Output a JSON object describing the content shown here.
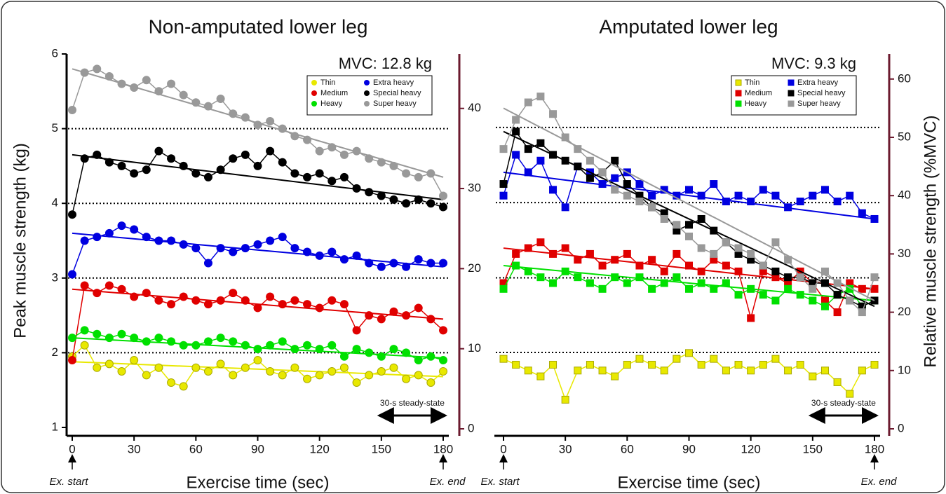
{
  "chart_data": [
    {
      "type": "scatter-line",
      "title": "Non-amputated lower leg",
      "xlabel": "Exercise time (sec)",
      "ylabel": "Peak muscle strength (kg)",
      "annotation": "MVC: 12.8 kg",
      "marker": "circle",
      "start_label": "Ex. start",
      "end_label": "Ex. end",
      "steady_state": {
        "label": "30-s steady-state",
        "range": [
          150,
          180
        ]
      },
      "x": [
        0,
        6,
        12,
        18,
        24,
        30,
        36,
        42,
        48,
        54,
        60,
        66,
        72,
        78,
        84,
        90,
        96,
        102,
        108,
        114,
        120,
        126,
        132,
        138,
        144,
        150,
        156,
        162,
        168,
        174,
        180
      ],
      "xlim": [
        0,
        180
      ],
      "xticks": [
        0,
        30,
        60,
        90,
        120,
        150,
        180
      ],
      "ylim": [
        1,
        6
      ],
      "yticks": [
        1,
        2,
        3,
        4,
        5,
        6
      ],
      "hlines": [
        2,
        3,
        4,
        5
      ],
      "y2lim": [
        0,
        46.8
      ],
      "y2ticks": [
        0,
        10,
        20,
        30,
        40
      ],
      "y2color": "#6b1a2e",
      "series": [
        {
          "name": "Thin",
          "color": "#e8e800",
          "values": [
            1.95,
            2.1,
            1.8,
            1.85,
            1.75,
            1.9,
            1.7,
            1.8,
            1.6,
            1.55,
            1.8,
            1.75,
            1.85,
            1.7,
            1.8,
            1.9,
            1.75,
            1.7,
            1.8,
            1.65,
            1.7,
            1.75,
            1.8,
            1.6,
            1.7,
            1.75,
            1.8,
            1.65,
            1.7,
            1.6,
            1.75
          ],
          "trend": [
            1.88,
            1.68
          ]
        },
        {
          "name": "Medium",
          "color": "#e00000",
          "values": [
            1.9,
            2.9,
            2.8,
            2.9,
            2.85,
            2.75,
            2.8,
            2.7,
            2.65,
            2.75,
            2.7,
            2.65,
            2.7,
            2.8,
            2.7,
            2.6,
            2.75,
            2.65,
            2.7,
            2.65,
            2.6,
            2.7,
            2.65,
            2.3,
            2.5,
            2.45,
            2.55,
            2.5,
            2.6,
            2.45,
            2.3
          ],
          "trend": [
            2.85,
            2.45
          ]
        },
        {
          "name": "Heavy",
          "color": "#00e000",
          "values": [
            2.2,
            2.3,
            2.25,
            2.2,
            2.25,
            2.2,
            2.15,
            2.2,
            2.15,
            2.1,
            2.1,
            2.15,
            2.2,
            2.15,
            2.1,
            2.05,
            2.1,
            2.15,
            2.05,
            2.1,
            2.05,
            2.1,
            1.95,
            2.05,
            2.0,
            1.95,
            2.05,
            2.0,
            1.9,
            1.95,
            1.9
          ],
          "trend": [
            2.2,
            1.93
          ]
        },
        {
          "name": "Extra heavy",
          "color": "#0000e0",
          "values": [
            3.05,
            3.5,
            3.55,
            3.6,
            3.7,
            3.65,
            3.55,
            3.5,
            3.5,
            3.45,
            3.4,
            3.2,
            3.4,
            3.35,
            3.4,
            3.45,
            3.5,
            3.55,
            3.4,
            3.35,
            3.3,
            3.35,
            3.25,
            3.3,
            3.2,
            3.15,
            3.2,
            3.15,
            3.25,
            3.2,
            3.2
          ],
          "trend": [
            3.6,
            3.15
          ]
        },
        {
          "name": "Special heavy",
          "color": "#000000",
          "values": [
            3.85,
            4.6,
            4.65,
            4.55,
            4.5,
            4.4,
            4.45,
            4.7,
            4.6,
            4.5,
            4.4,
            4.35,
            4.45,
            4.6,
            4.65,
            4.5,
            4.7,
            4.55,
            4.4,
            4.35,
            4.4,
            4.3,
            4.35,
            4.2,
            4.15,
            4.1,
            4.05,
            4.0,
            4.05,
            4.0,
            3.95
          ],
          "trend": [
            4.65,
            4.05
          ]
        },
        {
          "name": "Super heavy",
          "color": "#999999",
          "values": [
            5.25,
            5.75,
            5.8,
            5.7,
            5.6,
            5.55,
            5.65,
            5.5,
            5.6,
            5.45,
            5.35,
            5.3,
            5.4,
            5.2,
            5.15,
            5.05,
            5.1,
            5.0,
            4.9,
            4.85,
            4.7,
            4.75,
            4.65,
            4.7,
            4.6,
            4.55,
            4.5,
            4.4,
            4.35,
            4.4,
            4.1
          ],
          "trend": [
            5.8,
            4.35
          ]
        }
      ]
    },
    {
      "type": "scatter-line",
      "title": "Amputated lower leg",
      "xlabel": "Exercise time (sec)",
      "ylabel": "Relative muscle strength (%MVC)",
      "annotation": "MVC: 9.3 kg",
      "marker": "square",
      "ycolor": "#6b1a2e",
      "start_label": "Ex. start",
      "end_label": "Ex. end",
      "steady_state": {
        "label": "30-s steady-state",
        "range": [
          150,
          180
        ]
      },
      "x": [
        0,
        6,
        12,
        18,
        24,
        30,
        36,
        42,
        48,
        54,
        60,
        66,
        72,
        78,
        84,
        90,
        96,
        102,
        108,
        114,
        120,
        126,
        132,
        138,
        144,
        150,
        156,
        162,
        168,
        174,
        180
      ],
      "xlim": [
        0,
        180
      ],
      "xticks": [
        0,
        30,
        60,
        90,
        120,
        150,
        180
      ],
      "ylim": [
        0,
        64.3
      ],
      "yticks": [
        0,
        10,
        20,
        30,
        40,
        50,
        60
      ],
      "hlines": [
        13.1,
        25.9,
        38.8,
        51.7
      ],
      "series": [
        {
          "name": "Thin",
          "color": "#e8e800",
          "values": [
            12,
            11,
            10,
            9,
            11,
            5,
            10,
            11,
            10,
            9,
            11,
            12,
            11,
            10,
            12,
            13,
            11,
            12,
            10,
            11,
            10,
            11,
            12,
            10,
            11,
            9,
            10,
            8,
            6,
            10,
            11
          ]
        },
        {
          "name": "Medium",
          "color": "#e00000",
          "values": [
            25,
            30,
            31,
            32,
            30,
            31,
            29,
            30,
            28,
            29,
            30,
            28,
            29,
            27,
            30,
            28,
            27,
            29,
            28,
            27,
            19,
            27,
            26,
            25,
            27,
            25,
            22,
            20,
            25,
            24,
            24
          ],
          "trend": [
            31,
            24
          ]
        },
        {
          "name": "Heavy",
          "color": "#00e000",
          "values": [
            24,
            28,
            27,
            26,
            25,
            27,
            26,
            25,
            24,
            26,
            25,
            26,
            24,
            25,
            26,
            24,
            25,
            24,
            25,
            23,
            24,
            23,
            22,
            24,
            23,
            22,
            21,
            23,
            24,
            21,
            22
          ],
          "trend": [
            28,
            22
          ]
        },
        {
          "name": "Extra heavy",
          "color": "#0000e0",
          "values": [
            40,
            47,
            44,
            46,
            41,
            38,
            45,
            44,
            42,
            43,
            44,
            42,
            40,
            41,
            40,
            41,
            40,
            42,
            39,
            40,
            39,
            41,
            40,
            38,
            39,
            40,
            41,
            39,
            40,
            37,
            36
          ],
          "trend": [
            44,
            36
          ]
        },
        {
          "name": "Special heavy",
          "color": "#000000",
          "values": [
            42,
            51,
            48,
            49,
            47,
            46,
            45,
            43,
            44,
            46,
            42,
            40,
            38,
            37,
            34,
            35,
            36,
            34,
            32,
            30,
            29,
            28,
            27,
            26,
            26,
            25,
            25,
            23,
            22,
            21,
            22
          ],
          "trend": [
            51,
            21
          ]
        },
        {
          "name": "Super heavy",
          "color": "#999999",
          "values": [
            48,
            53,
            56,
            57,
            54,
            50,
            48,
            46,
            44,
            41,
            40,
            39,
            38,
            36,
            35,
            33,
            31,
            30,
            32,
            31,
            30,
            28,
            32,
            29,
            26,
            24,
            27,
            25,
            22,
            20,
            26
          ],
          "trend": [
            55,
            22
          ]
        }
      ]
    }
  ]
}
